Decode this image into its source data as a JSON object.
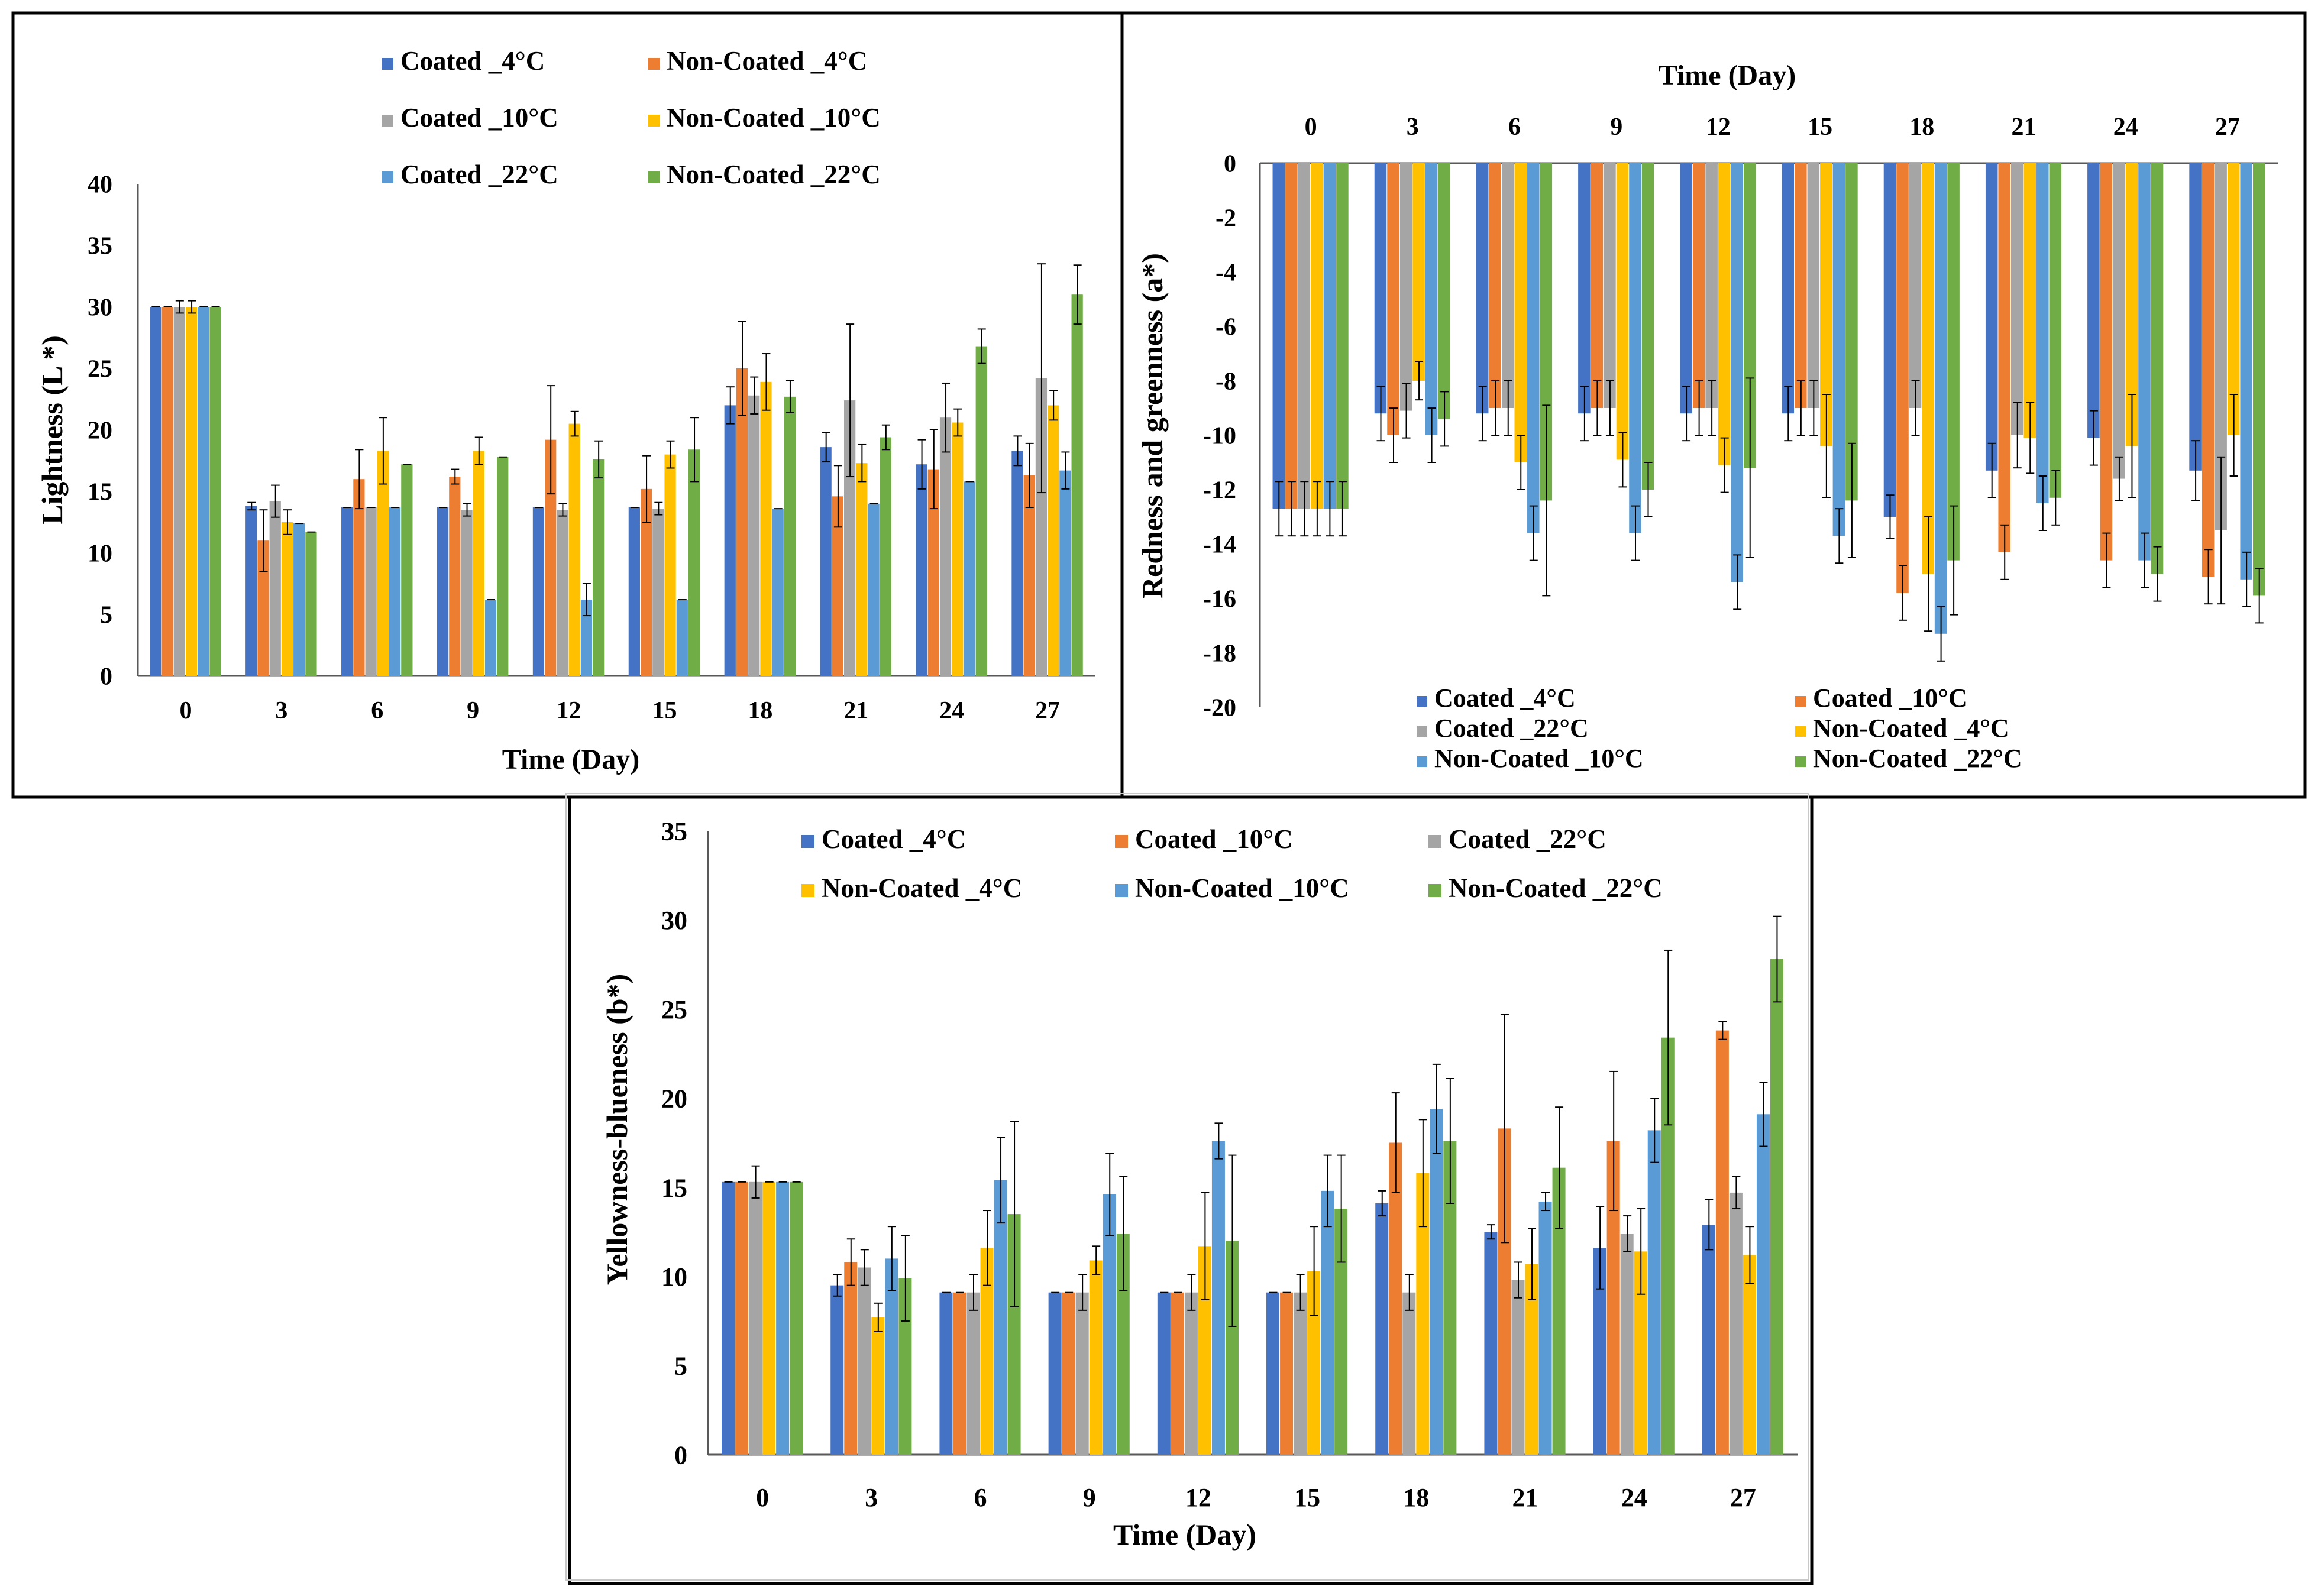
{
  "series_colors": {
    "blue": "#4472C4",
    "orange": "#ED7D31",
    "gray": "#A5A5A5",
    "yellow": "#FFC000",
    "lightblue": "#5B9BD5",
    "green": "#70AD47"
  },
  "chart_data": [
    {
      "id": "lightness",
      "type": "bar",
      "ylabel": "Lightness (L *)",
      "xlabel": "Time (Day)",
      "ylim": [
        0,
        40
      ],
      "yticks": [
        "0",
        "5",
        "10",
        "15",
        "20",
        "25",
        "30",
        "35",
        "40"
      ],
      "categories": [
        "0",
        "3",
        "6",
        "9",
        "12",
        "15",
        "18",
        "21",
        "24",
        "27"
      ],
      "legend_position": "top",
      "series": [
        {
          "name": "Coated _4°C",
          "color": "blue",
          "values": [
            30,
            13.8,
            13.7,
            13.7,
            13.7,
            13.7,
            22,
            18.6,
            17.2,
            18.3
          ],
          "errors": [
            0,
            0.3,
            0,
            0,
            0,
            0,
            1.5,
            1.2,
            2,
            1.2
          ]
        },
        {
          "name": "Non-Coated _4°C",
          "color": "orange",
          "values": [
            30,
            11,
            16,
            16.2,
            19.2,
            15.2,
            25,
            14.6,
            16.8,
            16.3
          ],
          "errors": [
            0,
            2.5,
            2.4,
            0.6,
            4.4,
            2.7,
            3.8,
            2.5,
            3.2,
            2.6
          ]
        },
        {
          "name": "Coated _10°C",
          "color": "gray",
          "values": [
            30,
            14.2,
            13.7,
            13.5,
            13.5,
            13.6,
            22.8,
            22.4,
            21,
            24.2
          ],
          "errors": [
            0.5,
            1.3,
            0,
            0.5,
            0.5,
            0.5,
            1.5,
            6.2,
            2.8,
            9.3
          ]
        },
        {
          "name": "Non-Coated _10°C",
          "color": "yellow",
          "values": [
            30,
            12.5,
            18.3,
            18.3,
            20.5,
            18,
            23.9,
            17.3,
            20.6,
            22
          ],
          "errors": [
            0.5,
            1,
            2.7,
            1.1,
            1,
            1.1,
            2.3,
            1.5,
            1.1,
            1.2
          ]
        },
        {
          "name": "Coated _22°C",
          "color": "lightblue",
          "values": [
            30,
            12.4,
            13.7,
            6.2,
            6.2,
            6.2,
            13.6,
            14,
            15.8,
            16.7
          ],
          "errors": [
            0,
            0,
            0,
            0,
            1.3,
            0,
            0,
            0,
            0,
            1.5
          ]
        },
        {
          "name": "Non-Coated _22°C",
          "color": "green",
          "values": [
            30,
            11.7,
            17.2,
            17.8,
            17.6,
            18.4,
            22.7,
            19.4,
            26.8,
            31
          ],
          "errors": [
            0,
            0,
            0,
            0,
            1.5,
            2.6,
            1.3,
            1,
            1.4,
            2.4
          ]
        }
      ],
      "legend": [
        [
          "Coated _4°C",
          "Non-Coated _4°C"
        ],
        [
          "Coated _10°C",
          "Non-Coated _10°C"
        ],
        [
          "Coated _22°C",
          "Non-Coated _22°C"
        ]
      ]
    },
    {
      "id": "redness",
      "type": "bar",
      "ylabel": "Redness and greenness (a*)",
      "xlabel": "Time (Day)",
      "ylim": [
        -20,
        0
      ],
      "yticks": [
        "0",
        "-2",
        "-4",
        "-6",
        "-8",
        "-10",
        "-12",
        "-14",
        "-16",
        "-18",
        "-20"
      ],
      "categories": [
        "0",
        "3",
        "6",
        "9",
        "12",
        "15",
        "18",
        "21",
        "24",
        "27"
      ],
      "legend_position": "bottom",
      "series": [
        {
          "name": "Coated _4°C",
          "color": "blue",
          "values": [
            -12.7,
            -9.2,
            -9.2,
            -9.2,
            -9.2,
            -9.2,
            -13,
            -11.3,
            -10.1,
            -11.3
          ],
          "errors": [
            1,
            1,
            1,
            1,
            1,
            1,
            0.8,
            1,
            1,
            1.1
          ]
        },
        {
          "name": "Coated _10°C",
          "color": "orange",
          "values": [
            -12.7,
            -10,
            -9,
            -9,
            -9,
            -9,
            -15.8,
            -14.3,
            -14.6,
            -15.2
          ],
          "errors": [
            1,
            1,
            1,
            1,
            1,
            1,
            1,
            1,
            1,
            1
          ]
        },
        {
          "name": "Coated _22°C",
          "color": "gray",
          "values": [
            -12.7,
            -9.1,
            -9,
            -9,
            -9,
            -9,
            -9,
            -10,
            -11.6,
            -13.5
          ],
          "errors": [
            1,
            1,
            1,
            1,
            1,
            1,
            1,
            1.2,
            0.8,
            2.7
          ]
        },
        {
          "name": "Non-Coated _4°C",
          "color": "yellow",
          "values": [
            -12.7,
            -8,
            -11,
            -10.9,
            -11.1,
            -10.4,
            -15.1,
            -10.1,
            -10.4,
            -10
          ],
          "errors": [
            1,
            0.7,
            1,
            1,
            1,
            1.9,
            2.1,
            1.3,
            1.9,
            1.5
          ]
        },
        {
          "name": "Non-Coated _10°C",
          "color": "lightblue",
          "values": [
            -12.7,
            -10,
            -13.6,
            -13.6,
            -15.4,
            -13.7,
            -17.3,
            -12.5,
            -14.6,
            -15.3
          ],
          "errors": [
            1,
            1,
            1,
            1,
            1,
            1,
            1,
            1,
            1,
            1
          ]
        },
        {
          "name": "Non-Coated _22°C",
          "color": "green",
          "values": [
            -12.7,
            -9.4,
            -12.4,
            -12,
            -11.2,
            -12.4,
            -14.6,
            -12.3,
            -15.1,
            -15.9
          ],
          "errors": [
            1,
            1,
            3.5,
            1,
            3.3,
            2.1,
            2,
            1,
            1,
            1
          ]
        }
      ],
      "legend": [
        [
          "Coated _4°C",
          "Coated _10°C"
        ],
        [
          "Coated _22°C",
          "Non-Coated _4°C"
        ],
        [
          "Non-Coated _10°C",
          "Non-Coated _22°C"
        ]
      ]
    },
    {
      "id": "yellowness",
      "type": "bar",
      "ylabel": "Yellowness-blueness (b*)",
      "xlabel": "Time (Day)",
      "ylim": [
        0,
        35
      ],
      "yticks": [
        "0",
        "5",
        "10",
        "15",
        "20",
        "25",
        "30",
        "35"
      ],
      "categories": [
        "0",
        "3",
        "6",
        "9",
        "12",
        "15",
        "18",
        "21",
        "24",
        "27"
      ],
      "legend_position": "top",
      "series": [
        {
          "name": "Coated _4°C",
          "color": "blue",
          "values": [
            15.3,
            9.5,
            9.1,
            9.1,
            9.1,
            9.1,
            14.1,
            12.5,
            11.6,
            12.9
          ],
          "errors": [
            0,
            0.6,
            0,
            0,
            0,
            0,
            0.7,
            0.4,
            2.3,
            1.4
          ]
        },
        {
          "name": "Coated _10°C",
          "color": "orange",
          "values": [
            15.3,
            10.8,
            9.1,
            9.1,
            9.1,
            9.1,
            17.5,
            18.3,
            17.6,
            23.8
          ],
          "errors": [
            0,
            1.3,
            0,
            0,
            0,
            0,
            2.8,
            6.4,
            3.9,
            0.5
          ]
        },
        {
          "name": "Coated _22°C",
          "color": "gray",
          "values": [
            15.3,
            10.5,
            9.1,
            9.1,
            9.1,
            9.1,
            9.1,
            9.8,
            12.4,
            14.7
          ],
          "errors": [
            0.9,
            1,
            1,
            1,
            1,
            1,
            1,
            1,
            1,
            0.9
          ]
        },
        {
          "name": "Non-Coated _4°C",
          "color": "yellow",
          "values": [
            15.3,
            7.7,
            11.6,
            10.9,
            11.7,
            10.3,
            15.8,
            10.7,
            11.4,
            11.2
          ],
          "errors": [
            0,
            0.8,
            2.1,
            0.8,
            3,
            2.5,
            3,
            2,
            2.4,
            1.6
          ]
        },
        {
          "name": "Non-Coated _10°C",
          "color": "lightblue",
          "values": [
            15.3,
            11,
            15.4,
            14.6,
            17.6,
            14.8,
            19.4,
            14.2,
            18.2,
            19.1
          ],
          "errors": [
            0,
            1.8,
            2.4,
            2.3,
            1,
            2,
            2.5,
            0.5,
            1.8,
            1.8
          ]
        },
        {
          "name": "Non-Coated _22°C",
          "color": "green",
          "values": [
            15.3,
            9.9,
            13.5,
            12.4,
            12,
            13.8,
            17.6,
            16.1,
            23.4,
            27.8
          ],
          "errors": [
            0,
            2.4,
            5.2,
            3.2,
            4.8,
            3,
            3.5,
            3.4,
            4.9,
            2.4
          ]
        }
      ],
      "legend": [
        [
          "Coated _4°C",
          "Coated _10°C",
          "Coated _22°C"
        ],
        [
          "Non-Coated _4°C",
          "Non-Coated _10°C",
          "Non-Coated _22°C"
        ]
      ]
    }
  ]
}
